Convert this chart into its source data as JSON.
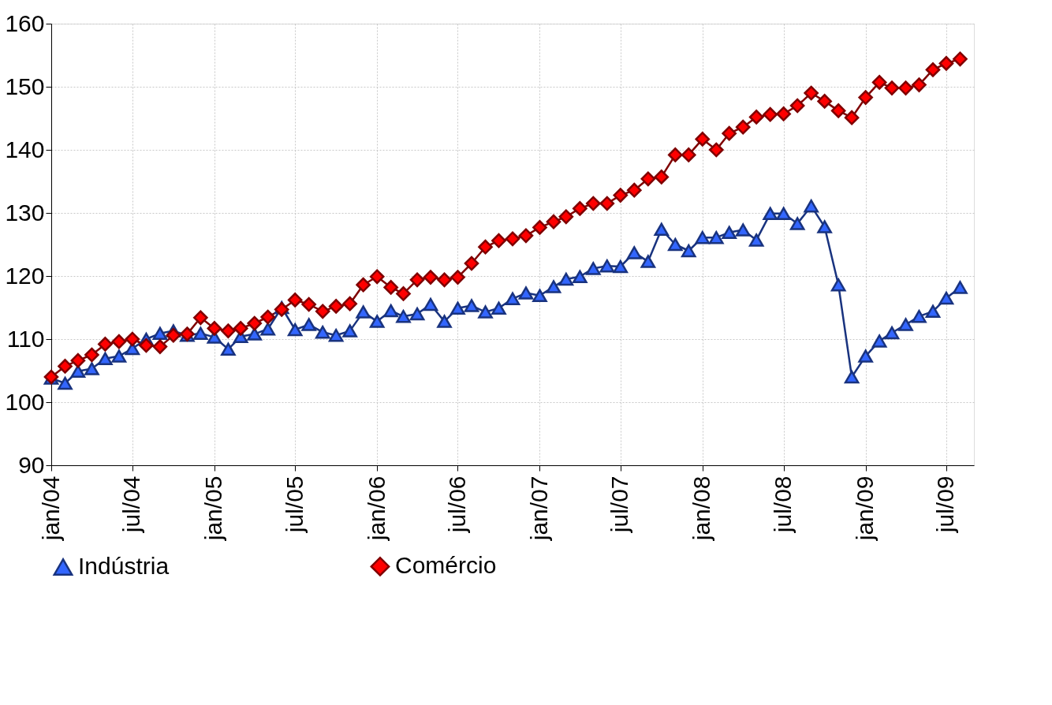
{
  "chart_data": {
    "type": "line",
    "x": [
      "2004-01",
      "2004-02",
      "2004-03",
      "2004-04",
      "2004-05",
      "2004-06",
      "2004-07",
      "2004-08",
      "2004-09",
      "2004-10",
      "2004-11",
      "2004-12",
      "2005-01",
      "2005-02",
      "2005-03",
      "2005-04",
      "2005-05",
      "2005-06",
      "2005-07",
      "2005-08",
      "2005-09",
      "2005-10",
      "2005-11",
      "2005-12",
      "2006-01",
      "2006-02",
      "2006-03",
      "2006-04",
      "2006-05",
      "2006-06",
      "2006-07",
      "2006-08",
      "2006-09",
      "2006-10",
      "2006-11",
      "2006-12",
      "2007-01",
      "2007-02",
      "2007-03",
      "2007-04",
      "2007-05",
      "2007-06",
      "2007-07",
      "2007-08",
      "2007-09",
      "2007-10",
      "2007-11",
      "2007-12",
      "2008-01",
      "2008-02",
      "2008-03",
      "2008-04",
      "2008-05",
      "2008-06",
      "2008-07",
      "2008-08",
      "2008-09",
      "2008-10",
      "2008-11",
      "2008-12",
      "2009-01",
      "2009-02",
      "2009-03",
      "2009-04",
      "2009-05",
      "2009-06",
      "2009-07",
      "2009-08"
    ],
    "series": [
      {
        "name": "Indústria",
        "color": "#3366ff",
        "marker": "triangle",
        "values": [
          103.8,
          103.0,
          104.9,
          105.3,
          106.9,
          107.3,
          108.5,
          110.0,
          110.9,
          111.3,
          110.6,
          110.9,
          110.3,
          108.4,
          110.4,
          110.8,
          111.6,
          115.0,
          111.5,
          112.3,
          111.1,
          110.6,
          111.3,
          114.3,
          112.8,
          114.5,
          113.6,
          114.0,
          115.5,
          112.8,
          114.9,
          115.3,
          114.3,
          114.9,
          116.4,
          117.3,
          116.9,
          118.3,
          119.5,
          119.9,
          121.2,
          121.6,
          121.5,
          123.7,
          122.3,
          127.4,
          125.0,
          124.0,
          126.1,
          126.1,
          126.9,
          127.3,
          125.7,
          129.9,
          129.9,
          128.3,
          131.1,
          127.8,
          118.6,
          104.0,
          107.3,
          109.7,
          111.0,
          112.3,
          113.6,
          114.4,
          116.5,
          118.2
        ]
      },
      {
        "name": "Comércio",
        "color": "#ff0000",
        "marker": "diamond",
        "values": [
          104.0,
          105.7,
          106.6,
          107.5,
          109.2,
          109.6,
          110.0,
          109.0,
          108.8,
          110.6,
          110.8,
          113.4,
          111.7,
          111.3,
          111.7,
          112.5,
          113.5,
          114.7,
          116.2,
          115.5,
          114.4,
          115.2,
          115.6,
          118.6,
          119.9,
          118.2,
          117.2,
          119.4,
          119.8,
          119.4,
          119.8,
          122.0,
          124.6,
          125.6,
          125.9,
          126.4,
          127.7,
          128.6,
          129.4,
          130.7,
          131.5,
          131.5,
          132.8,
          133.6,
          135.4,
          135.7,
          139.2,
          139.2,
          141.7,
          140.0,
          142.6,
          143.6,
          145.2,
          145.6,
          145.7,
          147.0,
          149.0,
          147.7,
          146.2,
          145.1,
          148.3,
          150.7,
          149.8,
          149.8,
          150.3,
          152.7,
          153.7,
          154.4
        ]
      }
    ],
    "xlim": [
      "2004-01",
      "2009-09"
    ],
    "xticks": [
      {
        "value": "2004-01",
        "label": "jan/04"
      },
      {
        "value": "2004-07",
        "label": "jul/04"
      },
      {
        "value": "2005-01",
        "label": "jan/05"
      },
      {
        "value": "2005-07",
        "label": "jul/05"
      },
      {
        "value": "2006-01",
        "label": "jan/06"
      },
      {
        "value": "2006-07",
        "label": "jul/06"
      },
      {
        "value": "2007-01",
        "label": "jan/07"
      },
      {
        "value": "2007-07",
        "label": "jul/07"
      },
      {
        "value": "2008-01",
        "label": "jan/08"
      },
      {
        "value": "2008-07",
        "label": "jul/08"
      },
      {
        "value": "2009-01",
        "label": "jan/09"
      },
      {
        "value": "2009-07",
        "label": "jul/09"
      }
    ],
    "ylim": [
      90,
      160
    ],
    "yticks": [
      90,
      100,
      110,
      120,
      130,
      140,
      150,
      160
    ],
    "grid": true,
    "legend": "bottom",
    "line_style": "solid"
  }
}
